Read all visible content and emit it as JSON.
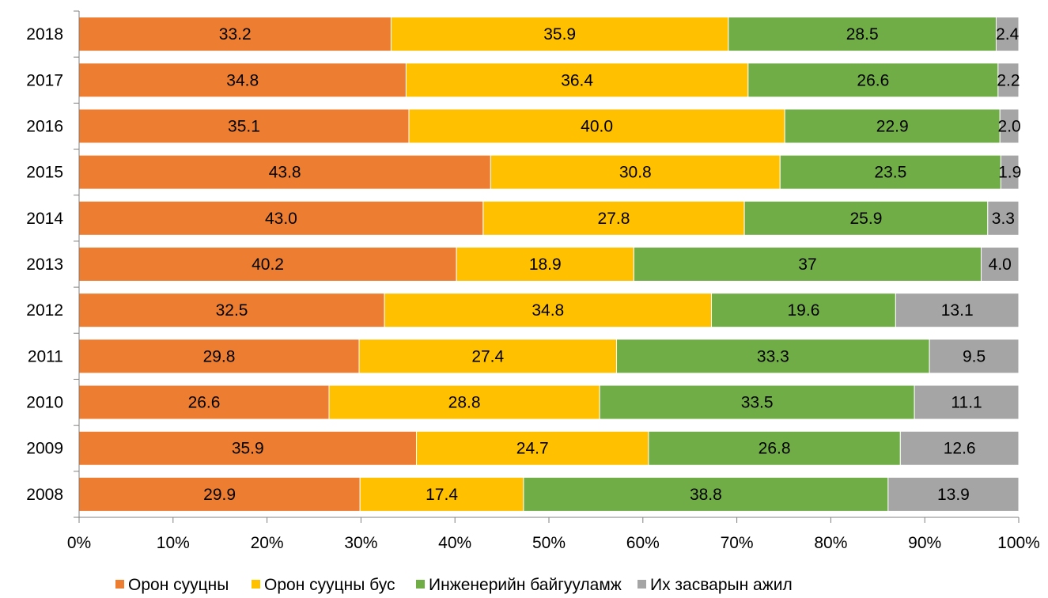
{
  "chart_data": {
    "type": "bar",
    "orientation": "horizontal",
    "stacked": "percent",
    "categories": [
      "2018",
      "2017",
      "2016",
      "2015",
      "2014",
      "2013",
      "2012",
      "2011",
      "2010",
      "2009",
      "2008"
    ],
    "series": [
      {
        "name": "Орон сууцны",
        "color": "#ED7D31",
        "values": [
          33.2,
          34.8,
          35.1,
          43.8,
          43.0,
          40.2,
          32.5,
          29.8,
          26.6,
          35.9,
          29.9
        ],
        "labels": [
          "33.2",
          "34.8",
          "35.1",
          "43.8",
          "43.0",
          "40.2",
          "32.5",
          "29.8",
          "26.6",
          "35.9",
          "29.9"
        ]
      },
      {
        "name": "Орон сууцны бус",
        "color": "#FFC000",
        "values": [
          35.9,
          36.4,
          40.0,
          30.8,
          27.8,
          18.9,
          34.8,
          27.4,
          28.8,
          24.7,
          17.4
        ],
        "labels": [
          "35.9",
          "36.4",
          "40.0",
          "30.8",
          "27.8",
          "18.9",
          "34.8",
          "27.4",
          "28.8",
          "24.7",
          "17.4"
        ]
      },
      {
        "name": "Инженерийн байгууламж",
        "color": "#70AD47",
        "values": [
          28.5,
          26.6,
          22.9,
          23.5,
          25.9,
          37,
          19.6,
          33.3,
          33.5,
          26.8,
          38.8
        ],
        "labels": [
          "28.5",
          "26.6",
          "22.9",
          "23.5",
          "25.9",
          "37",
          "19.6",
          "33.3",
          "33.5",
          "26.8",
          "38.8"
        ]
      },
      {
        "name": "Их засварын ажил",
        "color": "#A5A5A5",
        "values": [
          2.4,
          2.2,
          2.0,
          1.9,
          3.3,
          4.0,
          13.1,
          9.5,
          11.1,
          12.6,
          13.9
        ],
        "labels": [
          "2.4",
          "2.2",
          "2.0",
          "1.9",
          "3.3",
          "4.0",
          "13.1",
          "9.5",
          "11.1",
          "12.6",
          "13.9"
        ]
      }
    ],
    "x_ticks": [
      "0%",
      "10%",
      "20%",
      "30%",
      "40%",
      "50%",
      "60%",
      "70%",
      "80%",
      "90%",
      "100%"
    ],
    "xlim": [
      0,
      100
    ],
    "grid": false,
    "legend_position": "bottom",
    "title": "",
    "xlabel": "",
    "ylabel": ""
  }
}
